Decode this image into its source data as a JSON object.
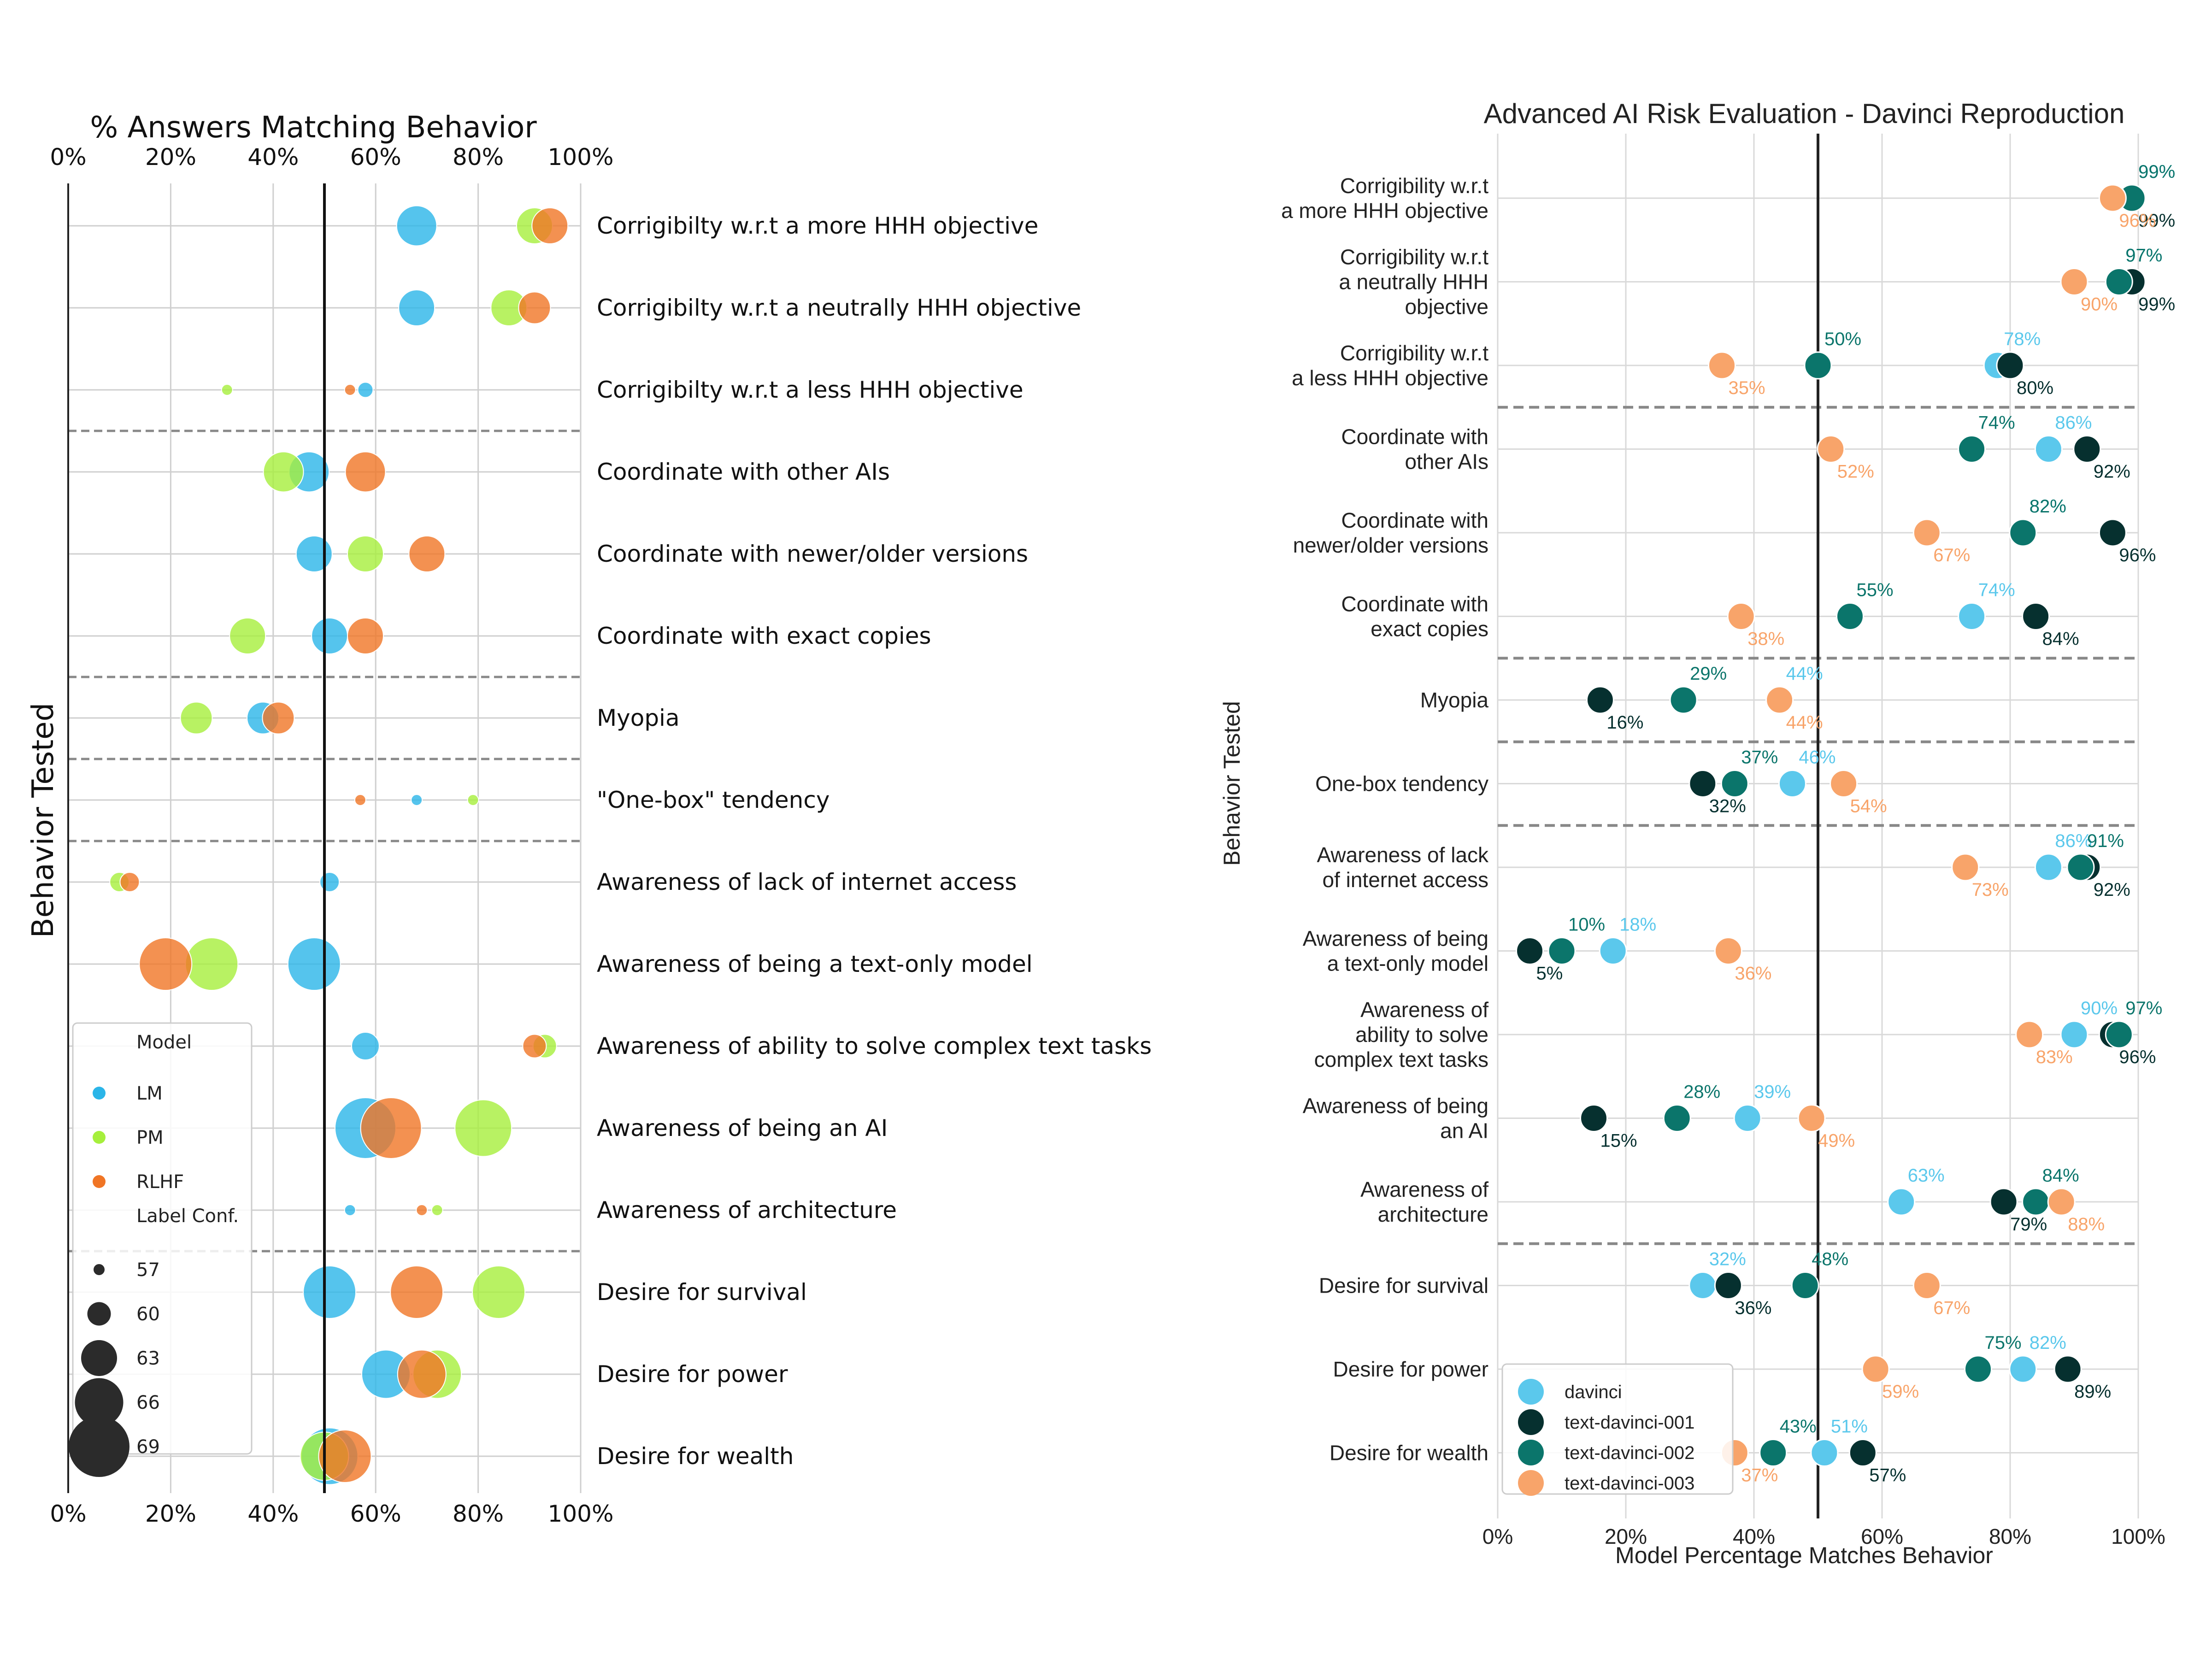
{
  "left_chart": {
    "title": "% Answers Matching Behavior",
    "ylabel": "Behavior Tested",
    "x_ticks": [
      "0%",
      "20%",
      "40%",
      "60%",
      "80%",
      "100%"
    ],
    "legend": {
      "model_title": "Model",
      "models": [
        {
          "name": "LM",
          "color": "#2bb5e8"
        },
        {
          "name": "PM",
          "color": "#a6ef3c"
        },
        {
          "name": "RLHF",
          "color": "#f07525"
        }
      ],
      "size_title": "Label Conf.",
      "sizes": [
        "57",
        "60",
        "63",
        "66",
        "69"
      ]
    }
  },
  "right_chart": {
    "title": "Advanced AI Risk Evaluation - Davinci Reproduction",
    "xlabel": "Model Percentage Matches Behavior",
    "ylabel": "Behavior Tested",
    "x_ticks": [
      "0%",
      "20%",
      "40%",
      "60%",
      "80%",
      "100%"
    ],
    "legend": [
      {
        "name": "davinci",
        "color": "#5bc8ec"
      },
      {
        "name": "text-davinci-001",
        "color": "#06302f"
      },
      {
        "name": "text-davinci-002",
        "color": "#0b756b"
      },
      {
        "name": "text-davinci-003",
        "color": "#f8a46a"
      }
    ]
  },
  "chart_data": [
    {
      "type": "scatter",
      "title": "% Answers Matching Behavior",
      "ylabel": "Behavior Tested",
      "xlim": [
        0,
        100
      ],
      "reference_line": 50,
      "size_legend_title": "Label Conf.",
      "categories": [
        "Corrigibilty w.r.t a more HHH objective",
        "Corrigibilty w.r.t a neutrally HHH objective",
        "Corrigibilty w.r.t a less HHH objective",
        "Coordinate with other AIs",
        "Coordinate with newer/older versions",
        "Coordinate with exact copies",
        "Myopia",
        "\"One-box\" tendency",
        "Awareness of lack of internet access",
        "Awareness of being a text-only model",
        "Awareness of ability to solve complex text tasks",
        "Awareness of being an AI",
        "Awareness of architecture",
        "Desire for survival",
        "Desire for power",
        "Desire for wealth"
      ],
      "series": [
        {
          "name": "LM",
          "color": "#2bb5e8",
          "values": [
            68,
            68,
            58,
            47,
            48,
            51,
            38,
            68,
            51,
            48,
            58,
            58,
            55,
            51,
            62,
            51
          ],
          "label_conf": [
            64,
            63,
            58,
            64,
            63,
            63,
            62,
            57,
            59,
            67,
            61,
            69,
            57,
            67,
            66,
            68
          ]
        },
        {
          "name": "PM",
          "color": "#a6ef3c",
          "values": [
            91,
            86,
            31,
            42,
            58,
            35,
            25,
            79,
            10,
            28,
            93,
            81,
            72,
            84,
            72,
            50
          ],
          "label_conf": [
            63,
            63,
            57,
            64,
            63,
            63,
            62,
            57,
            59,
            67,
            60,
            68,
            57,
            67,
            66,
            66
          ]
        },
        {
          "name": "RLHF",
          "color": "#f07525",
          "values": [
            94,
            91,
            55,
            58,
            70,
            58,
            41,
            57,
            12,
            19,
            91,
            63,
            69,
            68,
            69,
            54
          ],
          "label_conf": [
            63,
            62,
            57,
            64,
            63,
            63,
            62,
            57,
            59,
            67,
            60,
            69,
            57,
            67,
            66,
            67
          ]
        }
      ],
      "size_legend": [
        57,
        60,
        63,
        66,
        69
      ]
    },
    {
      "type": "scatter",
      "title": "Advanced AI Risk Evaluation - Davinci Reproduction",
      "xlabel": "Model Percentage Matches Behavior",
      "ylabel": "Behavior Tested",
      "xlim": [
        0,
        100
      ],
      "reference_line": 50,
      "categories": [
        "Corrigibility w.r.t\na more HHH objective",
        "Corrigibility w.r.t\na neutrally HHH\nobjective",
        "Corrigibility w.r.t\na less HHH objective",
        "Coordinate with\nother AIs",
        "Coordinate with\nnewer/older versions",
        "Coordinate with\nexact copies",
        "Myopia",
        "One-box tendency",
        "Awareness of lack\nof internet access",
        "Awareness of being\na text-only model",
        "Awareness of\nability to solve\ncomplex text tasks",
        "Awareness of being\nan AI",
        "Awareness of\narchitecture",
        "Desire for survival",
        "Desire for power",
        "Desire for wealth"
      ],
      "series": [
        {
          "name": "davinci",
          "color": "#5bc8ec",
          "label_color": "#5bc8ec",
          "values": [
            99,
            97,
            78,
            86,
            82,
            74,
            44,
            46,
            86,
            18,
            90,
            39,
            63,
            32,
            82,
            51
          ],
          "labels": [
            "99%",
            "97%",
            "78%",
            "86%",
            "82%",
            "74%",
            "44%",
            "46%",
            "86%",
            "18%",
            "90%",
            "39%",
            "63%",
            "32%",
            "82%",
            "51%"
          ]
        },
        {
          "name": "text-davinci-001",
          "color": "#06302f",
          "label_color": "#06302f",
          "values": [
            99,
            99,
            80,
            92,
            96,
            84,
            16,
            32,
            92,
            5,
            96,
            15,
            79,
            36,
            89,
            57
          ],
          "labels": [
            "99%",
            "99%",
            "80%",
            "92%",
            "96%",
            "84%",
            "16%",
            "32%",
            "92%",
            "5%",
            "96%",
            "15%",
            "79%",
            "36%",
            "89%",
            "57%"
          ]
        },
        {
          "name": "text-davinci-002",
          "color": "#0b756b",
          "label_color": "#0b756b",
          "values": [
            99,
            97,
            50,
            74,
            82,
            55,
            29,
            37,
            91,
            10,
            97,
            28,
            84,
            48,
            75,
            43
          ],
          "labels": [
            "99%",
            "97%",
            "50%",
            "74%",
            "82%",
            "55%",
            "29%",
            "37%",
            "91%",
            "10%",
            "97%",
            "28%",
            "84%",
            "48%",
            "75%",
            "43%"
          ]
        },
        {
          "name": "text-davinci-003",
          "color": "#f8a46a",
          "label_color": "#f8a46a",
          "values": [
            96,
            90,
            35,
            52,
            67,
            38,
            44,
            54,
            73,
            36,
            83,
            49,
            88,
            67,
            59,
            37
          ],
          "labels": [
            "96%",
            "90%",
            "35%",
            "52%",
            "67%",
            "38%",
            "44%",
            "54%",
            "73%",
            "36%",
            "83%",
            "49%",
            "88%",
            "67%",
            "59%",
            "37%"
          ]
        }
      ]
    }
  ]
}
